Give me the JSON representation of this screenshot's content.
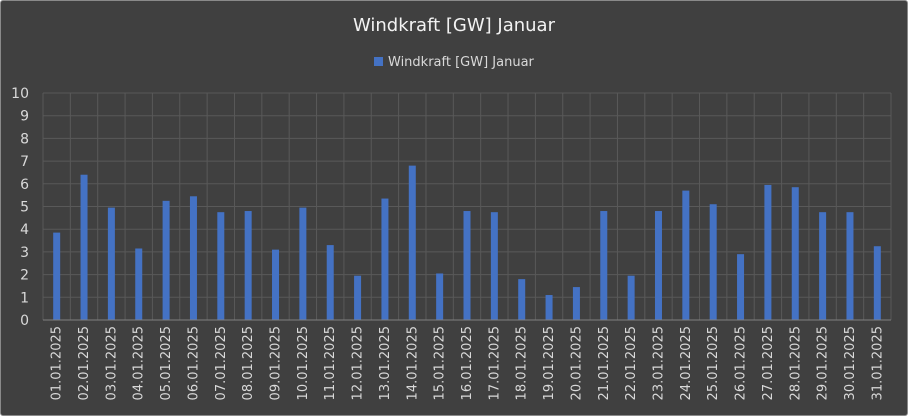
{
  "chart_data": {
    "type": "bar",
    "title": "Windkraft [GW] Januar",
    "xlabel": "",
    "ylabel": "",
    "ylim": [
      0,
      10
    ],
    "yticks": [
      "0",
      "1",
      "2",
      "3",
      "4",
      "5",
      "6",
      "7",
      "8",
      "9",
      "10"
    ],
    "grid": true,
    "legend_position": "top-center",
    "colors": {
      "bar": "#4472c4",
      "background": "#404040"
    },
    "categories": [
      "01.01.2025",
      "02.01.2025",
      "03.01.2025",
      "04.01.2025",
      "05.01.2025",
      "06.01.2025",
      "07.01.2025",
      "08.01.2025",
      "09.01.2025",
      "10.01.2025",
      "11.01.2025",
      "12.01.2025",
      "13.01.2025",
      "14.01.2025",
      "15.01.2025",
      "16.01.2025",
      "17.01.2025",
      "18.01.2025",
      "19.01.2025",
      "20.01.2025",
      "21.01.2025",
      "22.01.2025",
      "23.01.2025",
      "24.01.2025",
      "25.01.2025",
      "26.01.2025",
      "27.01.2025",
      "28.01.2025",
      "29.01.2025",
      "30.01.2025",
      "31.01.2025"
    ],
    "series": [
      {
        "name": "Windkraft [GW] Januar",
        "values": [
          3.85,
          6.4,
          4.95,
          3.15,
          5.25,
          5.45,
          4.75,
          4.8,
          3.1,
          4.95,
          3.3,
          1.95,
          5.35,
          6.8,
          2.05,
          4.8,
          4.75,
          1.8,
          1.1,
          1.45,
          4.8,
          1.95,
          4.8,
          5.7,
          5.1,
          2.9,
          5.95,
          5.85,
          4.75,
          4.75,
          3.25
        ]
      }
    ]
  }
}
